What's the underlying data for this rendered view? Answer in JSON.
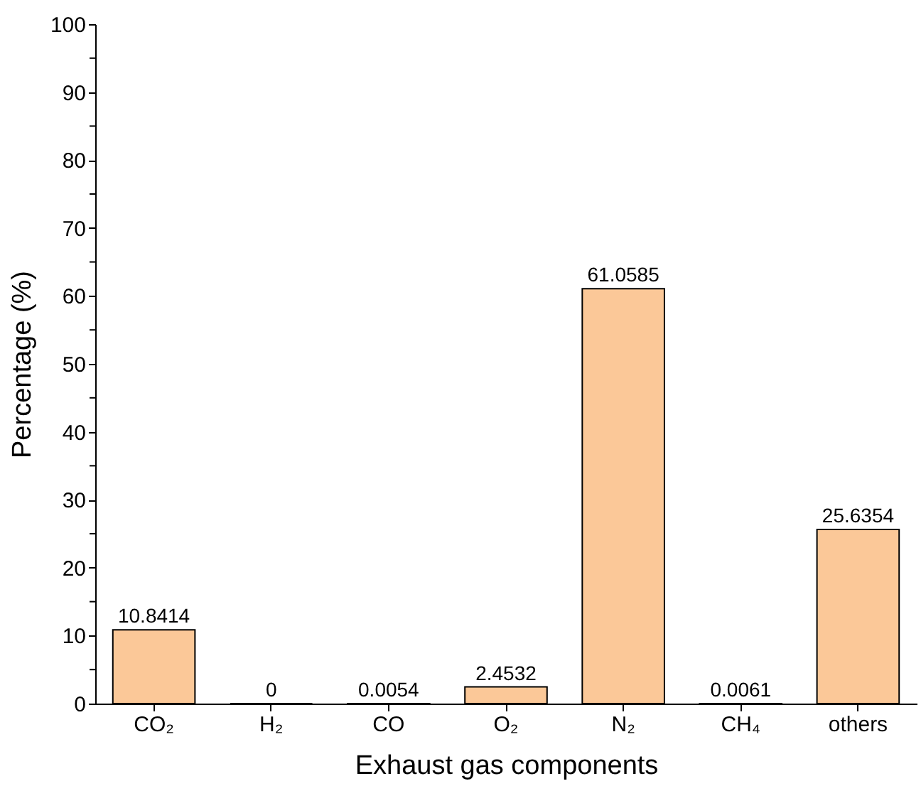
{
  "chart_data": {
    "type": "bar",
    "xlabel": "Exhaust gas components",
    "ylabel": "Percentage (%)",
    "categories": [
      "CO₂",
      "H₂",
      "CO",
      "O₂",
      "N₂",
      "CH₄",
      "others"
    ],
    "values": [
      10.8414,
      0,
      0.0054,
      2.4532,
      61.0585,
      0.0061,
      25.6354
    ],
    "color": "#fbc898",
    "ylim": [
      0,
      100
    ],
    "yticks": [
      0,
      {
        "value": 5,
        "label": null
      },
      10,
      {
        "value": 15,
        "label": null
      },
      20,
      {
        "value": 25,
        "label": null
      },
      30,
      {
        "value": 35,
        "label": null
      },
      40,
      {
        "value": 45,
        "label": null
      },
      50,
      {
        "value": 55,
        "label": null
      },
      60,
      {
        "value": 65,
        "label": null
      },
      70,
      {
        "value": 75,
        "label": null
      },
      80,
      {
        "value": 85,
        "label": null
      },
      90,
      {
        "value": 95,
        "label": null
      },
      100
    ],
    "grid": false,
    "data_labels": true
  }
}
